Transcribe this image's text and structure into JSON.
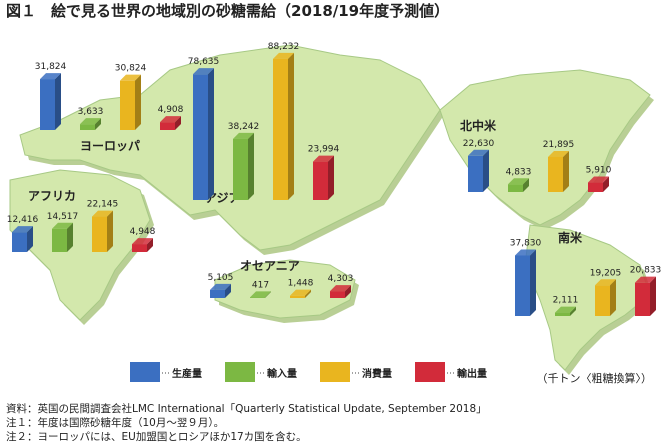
{
  "chart_data": {
    "type": "bar",
    "title": "図１　絵で見る世界の地域別の砂糖需給（2018/19年度予測値）",
    "categories": [
      "ヨーロッパ",
      "アフリカ",
      "アジア",
      "オセアニア",
      "北中米",
      "南米"
    ],
    "series": [
      {
        "name": "生産量",
        "color": "#3b6fc1",
        "values": [
          31824,
          12416,
          78635,
          5105,
          22630,
          37830
        ],
        "value_labels": [
          "31,824",
          "12,416",
          "78,635",
          "5,105",
          "22,630",
          "37,830"
        ]
      },
      {
        "name": "輸入量",
        "color": "#7cb843",
        "values": [
          3633,
          14517,
          38242,
          417,
          4833,
          2111
        ],
        "value_labels": [
          "3,633",
          "14,517",
          "38,242",
          "417",
          "4,833",
          "2,111"
        ]
      },
      {
        "name": "消費量",
        "color": "#e9b51f",
        "values": [
          30824,
          22145,
          88232,
          1448,
          21895,
          19205
        ],
        "value_labels": [
          "30,824",
          "22,145",
          "88,232",
          "1,448",
          "21,895",
          "19,205"
        ]
      },
      {
        "name": "輸出量",
        "color": "#d22b3a",
        "values": [
          4908,
          4948,
          23994,
          4303,
          5910,
          20833
        ],
        "value_labels": [
          "4,908",
          "4,948",
          "23,994",
          "4,303",
          "5,910",
          "20,833"
        ]
      }
    ],
    "unit": "（千トン〈粗糖換算〉）",
    "notes": [
      "資料：英国の民間調査会社LMC International「Quarterly Statistical Update, September 2018」",
      "注１：年度は国際砂糖年度（10月～翌９月）。",
      "注２：ヨーロッパには、EU加盟国とロシアほか17カ国を含む。"
    ]
  }
}
